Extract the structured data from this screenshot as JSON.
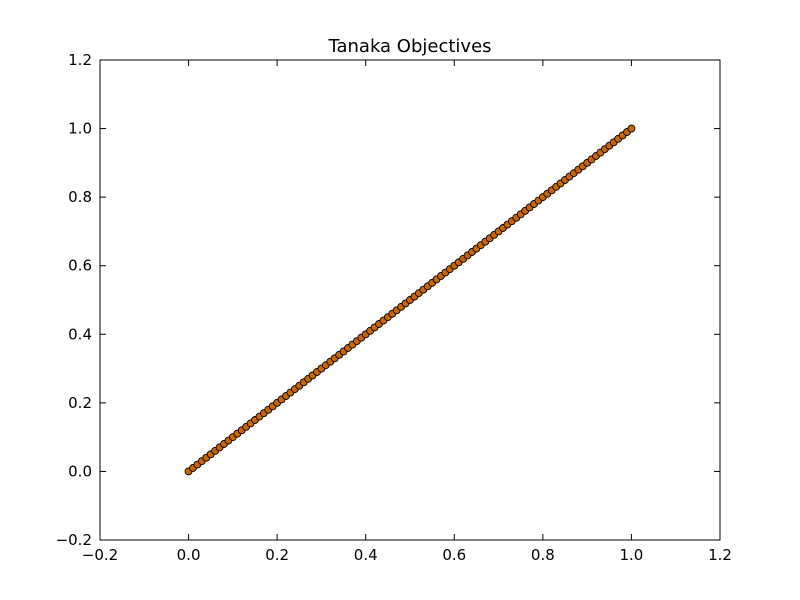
{
  "chart_data": {
    "type": "scatter",
    "title": "Tanaka Objectives",
    "xlabel": "",
    "ylabel": "",
    "xlim": [
      -0.2,
      1.2
    ],
    "ylim": [
      -0.2,
      1.2
    ],
    "xticks": [
      "−0.2",
      "0.0",
      "0.2",
      "0.4",
      "0.6",
      "0.8",
      "1.0",
      "1.2"
    ],
    "yticks": [
      "−0.2",
      "0.0",
      "0.2",
      "0.4",
      "0.6",
      "0.8",
      "1.0",
      "1.2"
    ],
    "grid": false,
    "marker_fill": "#cc6600",
    "marker_edge": "#000000",
    "series": [
      {
        "x": [
          0.0,
          0.01,
          0.02,
          0.03,
          0.04,
          0.05,
          0.06,
          0.07,
          0.08,
          0.09,
          0.1,
          0.11,
          0.12,
          0.13,
          0.14,
          0.15,
          0.16,
          0.17,
          0.18,
          0.19,
          0.2,
          0.21,
          0.22,
          0.23,
          0.24,
          0.25,
          0.26,
          0.27,
          0.28,
          0.29,
          0.3,
          0.31,
          0.32,
          0.33,
          0.34,
          0.35,
          0.36,
          0.37,
          0.38,
          0.39,
          0.4,
          0.41,
          0.42,
          0.43,
          0.44,
          0.45,
          0.46,
          0.47,
          0.48,
          0.49,
          0.5,
          0.51,
          0.52,
          0.53,
          0.54,
          0.55,
          0.56,
          0.57,
          0.58,
          0.59,
          0.6,
          0.61,
          0.62,
          0.63,
          0.64,
          0.65,
          0.66,
          0.67,
          0.68,
          0.69,
          0.7,
          0.71,
          0.72,
          0.73,
          0.74,
          0.75,
          0.76,
          0.77,
          0.78,
          0.79,
          0.8,
          0.81,
          0.82,
          0.83,
          0.84,
          0.85,
          0.86,
          0.87,
          0.88,
          0.89,
          0.9,
          0.91,
          0.92,
          0.93,
          0.94,
          0.95,
          0.96,
          0.97,
          0.98,
          0.99,
          1.0
        ],
        "y": [
          0.0,
          0.01,
          0.02,
          0.03,
          0.04,
          0.05,
          0.06,
          0.07,
          0.08,
          0.09,
          0.1,
          0.11,
          0.12,
          0.13,
          0.14,
          0.15,
          0.16,
          0.17,
          0.18,
          0.19,
          0.2,
          0.21,
          0.22,
          0.23,
          0.24,
          0.25,
          0.26,
          0.27,
          0.28,
          0.29,
          0.3,
          0.31,
          0.32,
          0.33,
          0.34,
          0.35,
          0.36,
          0.37,
          0.38,
          0.39,
          0.4,
          0.41,
          0.42,
          0.43,
          0.44,
          0.45,
          0.46,
          0.47,
          0.48,
          0.49,
          0.5,
          0.51,
          0.52,
          0.53,
          0.54,
          0.55,
          0.56,
          0.57,
          0.58,
          0.59,
          0.6,
          0.61,
          0.62,
          0.63,
          0.64,
          0.65,
          0.66,
          0.67,
          0.68,
          0.69,
          0.7,
          0.71,
          0.72,
          0.73,
          0.74,
          0.75,
          0.76,
          0.77,
          0.78,
          0.79,
          0.8,
          0.81,
          0.82,
          0.83,
          0.84,
          0.85,
          0.86,
          0.87,
          0.88,
          0.89,
          0.9,
          0.91,
          0.92,
          0.93,
          0.94,
          0.95,
          0.96,
          0.97,
          0.98,
          0.99,
          1.0
        ]
      }
    ]
  }
}
